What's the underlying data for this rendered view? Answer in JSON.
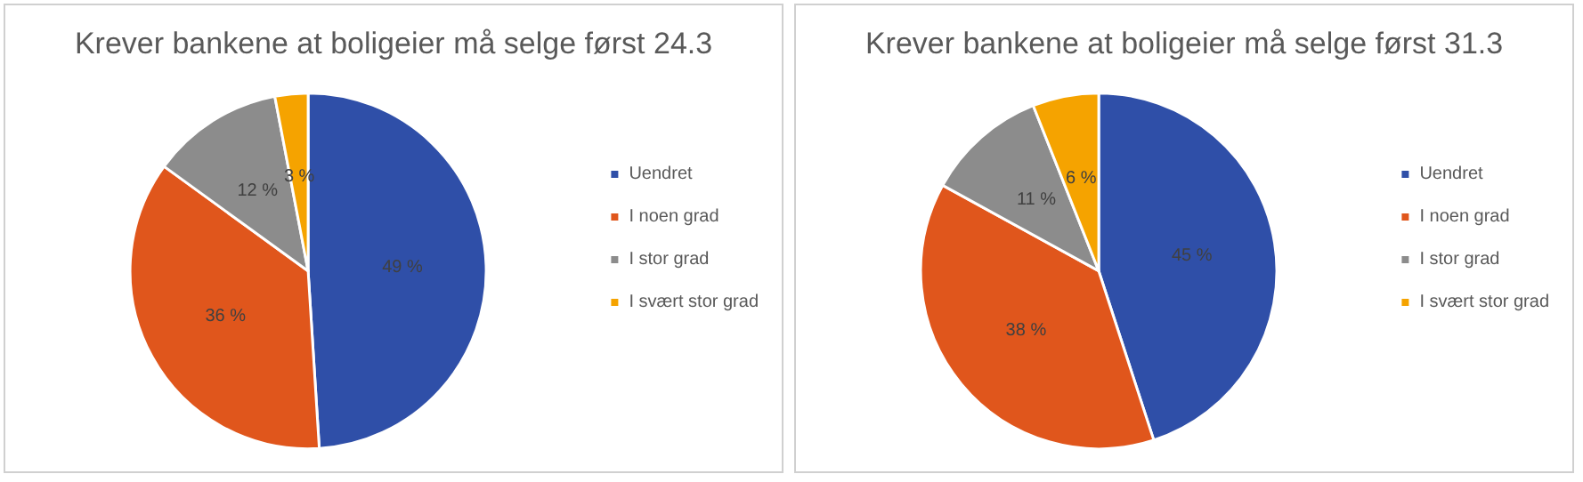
{
  "chart_data": [
    {
      "type": "pie",
      "title": "Krever bankene at boligeier må selge først 24.3",
      "categories": [
        "Uendret",
        "I noen grad",
        "I stor grad",
        "I svært stor grad"
      ],
      "values": [
        49,
        36,
        12,
        3
      ],
      "colors": [
        "#2f4fa8",
        "#e0561c",
        "#8c8c8c",
        "#f5a300"
      ],
      "value_labels": [
        "49 %",
        "36 %",
        "12 %",
        "3 %"
      ],
      "legend": "right"
    },
    {
      "type": "pie",
      "title": "Krever bankene at boligeier må selge først 31.3",
      "categories": [
        "Uendret",
        "I noen grad",
        "I stor grad",
        "I svært stor grad"
      ],
      "values": [
        45,
        38,
        11,
        6
      ],
      "colors": [
        "#2f4fa8",
        "#e0561c",
        "#8c8c8c",
        "#f5a300"
      ],
      "value_labels": [
        "45 %",
        "38 %",
        "11 %",
        "6 %"
      ],
      "legend": "right"
    }
  ]
}
